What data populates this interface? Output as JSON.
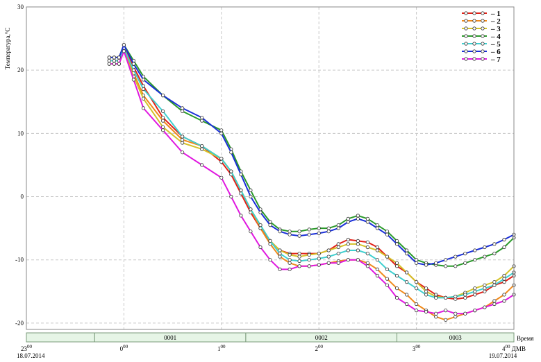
{
  "chart_data": {
    "type": "line",
    "ylabel": "Температура,°С",
    "ylim": [
      -21,
      30
    ],
    "yticks": [
      30,
      20,
      10,
      0,
      -10,
      -20
    ],
    "xlim": [
      23.0,
      28.0
    ],
    "grid": true,
    "legend_position": "top-right",
    "time_axis_label": "Время",
    "time_axis_zone": "ДМВ",
    "x_ticks": [
      {
        "x": 23.0,
        "hour": "23",
        "minutes": "00",
        "date": "18.07.2014"
      },
      {
        "x": 24.0,
        "hour": "0",
        "minutes": "00",
        "date": ""
      },
      {
        "x": 25.0,
        "hour": "1",
        "minutes": "00",
        "date": ""
      },
      {
        "x": 26.0,
        "hour": "2",
        "minutes": "00",
        "date": ""
      },
      {
        "x": 27.0,
        "hour": "3",
        "minutes": "00",
        "date": ""
      },
      {
        "x": 28.0,
        "hour": "4",
        "minutes": "00",
        "date": "19.07.2014"
      }
    ],
    "segments": [
      {
        "label": "",
        "from": 23.0,
        "to": 23.7
      },
      {
        "label": "0001",
        "from": 23.7,
        "to": 25.25
      },
      {
        "label": "0002",
        "from": 25.25,
        "to": 26.8
      },
      {
        "label": "0003",
        "from": 26.8,
        "to": 28.0
      }
    ],
    "series": [
      {
        "name": "1",
        "color": "#e32219",
        "x": [
          23.85,
          23.9,
          23.95,
          24.0,
          24.1,
          24.2,
          24.4,
          24.6,
          24.8,
          25.0,
          25.1,
          25.2,
          25.3,
          25.4,
          25.5,
          25.6,
          25.7,
          25.8,
          25.9,
          26.0,
          26.1,
          26.2,
          26.3,
          26.4,
          26.5,
          26.6,
          26.7,
          26.8,
          26.9,
          27.0,
          27.1,
          27.2,
          27.3,
          27.4,
          27.5,
          27.6,
          27.7,
          27.8,
          27.9,
          28.0
        ],
        "y": [
          22,
          22,
          22,
          24,
          20.5,
          17.5,
          12.5,
          9.5,
          8,
          5.5,
          3.5,
          0.5,
          -2.5,
          -5,
          -7,
          -8.5,
          -9,
          -9,
          -9,
          -9,
          -8.5,
          -7.5,
          -6.8,
          -7,
          -7.2,
          -8,
          -9.5,
          -11,
          -12,
          -13.5,
          -14.5,
          -15.5,
          -16,
          -16.2,
          -16,
          -15.5,
          -15,
          -14,
          -13.5,
          -12.5
        ]
      },
      {
        "name": "2",
        "color": "#f08a1c",
        "x": [
          23.85,
          23.9,
          23.95,
          24.0,
          24.1,
          24.2,
          24.4,
          24.6,
          24.8,
          25.0,
          25.1,
          25.2,
          25.3,
          25.4,
          25.5,
          25.6,
          25.7,
          25.8,
          25.9,
          26.0,
          26.1,
          26.2,
          26.3,
          26.4,
          26.5,
          26.6,
          26.7,
          26.8,
          26.9,
          27.0,
          27.1,
          27.2,
          27.3,
          27.4,
          27.5,
          27.6,
          27.7,
          27.8,
          27.9,
          28.0
        ],
        "y": [
          21.5,
          21.5,
          21.5,
          23.5,
          19.5,
          16,
          12,
          9,
          8,
          6,
          4,
          1,
          -2,
          -5,
          -7.5,
          -9.5,
          -10.5,
          -11,
          -11,
          -10.8,
          -10.5,
          -10.2,
          -10,
          -10,
          -10.5,
          -11.5,
          -13,
          -14.5,
          -15.5,
          -17,
          -18,
          -19,
          -19.5,
          -19,
          -18.5,
          -18,
          -17.5,
          -16.5,
          -15.5,
          -14
        ]
      },
      {
        "name": "3",
        "color": "#d4c32a",
        "x": [
          23.85,
          23.9,
          23.95,
          24.0,
          24.1,
          24.2,
          24.4,
          24.6,
          24.8,
          25.0,
          25.1,
          25.2,
          25.3,
          25.4,
          25.5,
          25.6,
          25.7,
          25.8,
          25.9,
          26.0,
          26.1,
          26.2,
          26.3,
          26.4,
          26.5,
          26.6,
          26.7,
          26.8,
          26.9,
          27.0,
          27.1,
          27.2,
          27.3,
          27.4,
          27.5,
          27.6,
          27.7,
          27.8,
          27.9,
          28.0
        ],
        "y": [
          21,
          21,
          21,
          23,
          19,
          15.5,
          11,
          8.5,
          7.5,
          6,
          4,
          1,
          -2,
          -4.5,
          -7,
          -8.5,
          -9.2,
          -9.5,
          -9.2,
          -9,
          -8.5,
          -8,
          -7.5,
          -7.5,
          -8,
          -8.5,
          -9.5,
          -10.5,
          -12,
          -13.5,
          -15,
          -15.8,
          -16,
          -15.8,
          -15.2,
          -14.5,
          -14,
          -13.5,
          -12.5,
          -11
        ]
      },
      {
        "name": "4",
        "color": "#2a9a2a",
        "x": [
          23.85,
          23.9,
          23.95,
          24.0,
          24.1,
          24.2,
          24.4,
          24.6,
          24.8,
          25.0,
          25.1,
          25.2,
          25.3,
          25.4,
          25.5,
          25.6,
          25.7,
          25.8,
          25.9,
          26.0,
          26.1,
          26.2,
          26.3,
          26.4,
          26.5,
          26.6,
          26.7,
          26.8,
          26.9,
          27.0,
          27.1,
          27.2,
          27.3,
          27.4,
          27.5,
          27.6,
          27.7,
          27.8,
          27.9,
          28.0
        ],
        "y": [
          22,
          22,
          22,
          24,
          21.5,
          19,
          16,
          13.5,
          12,
          10.5,
          7.5,
          4,
          1,
          -2,
          -4,
          -5.2,
          -5.5,
          -5.5,
          -5.2,
          -5,
          -5,
          -4.5,
          -3.5,
          -3,
          -3.5,
          -4.5,
          -5.5,
          -7,
          -8.5,
          -10,
          -10.5,
          -10.8,
          -11,
          -11,
          -10.5,
          -10,
          -9.5,
          -9,
          -8,
          -6.5
        ]
      },
      {
        "name": "5",
        "color": "#3fd0d0",
        "x": [
          23.85,
          23.9,
          23.95,
          24.0,
          24.1,
          24.2,
          24.4,
          24.6,
          24.8,
          25.0,
          25.1,
          25.2,
          25.3,
          25.4,
          25.5,
          25.6,
          25.7,
          25.8,
          25.9,
          26.0,
          26.1,
          26.2,
          26.3,
          26.4,
          26.5,
          26.6,
          26.7,
          26.8,
          26.9,
          27.0,
          27.1,
          27.2,
          27.3,
          27.4,
          27.5,
          27.6,
          27.7,
          27.8,
          27.9,
          28.0
        ],
        "y": [
          21.5,
          21.5,
          21.5,
          23.5,
          20,
          17,
          13.5,
          9.5,
          8,
          6,
          4,
          1,
          -2,
          -4.5,
          -7,
          -9,
          -10,
          -10.2,
          -10,
          -9.8,
          -9.5,
          -9,
          -8.5,
          -8.5,
          -9,
          -10,
          -11.5,
          -12.5,
          -13.5,
          -14.5,
          -15.5,
          -16,
          -16,
          -15.8,
          -15.5,
          -15,
          -14.5,
          -14,
          -13,
          -12
        ]
      },
      {
        "name": "6",
        "color": "#1a2fd8",
        "x": [
          23.85,
          23.9,
          23.95,
          24.0,
          24.1,
          24.2,
          24.4,
          24.6,
          24.8,
          25.0,
          25.1,
          25.2,
          25.3,
          25.4,
          25.5,
          25.6,
          25.7,
          25.8,
          25.9,
          26.0,
          26.1,
          26.2,
          26.3,
          26.4,
          26.5,
          26.6,
          26.7,
          26.8,
          26.9,
          27.0,
          27.1,
          27.2,
          27.3,
          27.4,
          27.5,
          27.6,
          27.7,
          27.8,
          27.9,
          28.0
        ],
        "y": [
          22,
          22,
          22,
          24,
          21,
          18.5,
          16,
          14,
          12.5,
          10,
          7,
          3.5,
          0,
          -2.5,
          -4.5,
          -5.5,
          -6,
          -6.2,
          -6,
          -5.8,
          -5.5,
          -5,
          -4,
          -3.5,
          -4,
          -5,
          -6,
          -7.5,
          -9,
          -10.5,
          -10.8,
          -10.5,
          -10,
          -9.5,
          -9,
          -8.5,
          -8,
          -7.5,
          -6.8,
          -6
        ]
      },
      {
        "name": "7",
        "color": "#e018e0",
        "x": [
          23.85,
          23.9,
          23.95,
          24.0,
          24.1,
          24.2,
          24.4,
          24.6,
          24.8,
          25.0,
          25.1,
          25.2,
          25.3,
          25.4,
          25.5,
          25.6,
          25.7,
          25.8,
          25.9,
          26.0,
          26.1,
          26.2,
          26.3,
          26.4,
          26.5,
          26.6,
          26.7,
          26.8,
          26.9,
          27.0,
          27.1,
          27.2,
          27.3,
          27.4,
          27.5,
          27.6,
          27.7,
          27.8,
          27.9,
          28.0
        ],
        "y": [
          21,
          21,
          21,
          23,
          18.5,
          14,
          10.5,
          7,
          5,
          3,
          0,
          -3,
          -5.5,
          -8,
          -10,
          -11.5,
          -11.5,
          -11,
          -11,
          -10.8,
          -10.5,
          -10.5,
          -10,
          -10,
          -11,
          -12.5,
          -14,
          -16,
          -17,
          -18,
          -18.2,
          -18.5,
          -18,
          -18.5,
          -18.5,
          -18,
          -17.5,
          -17,
          -16.5,
          -15.5
        ]
      }
    ]
  }
}
